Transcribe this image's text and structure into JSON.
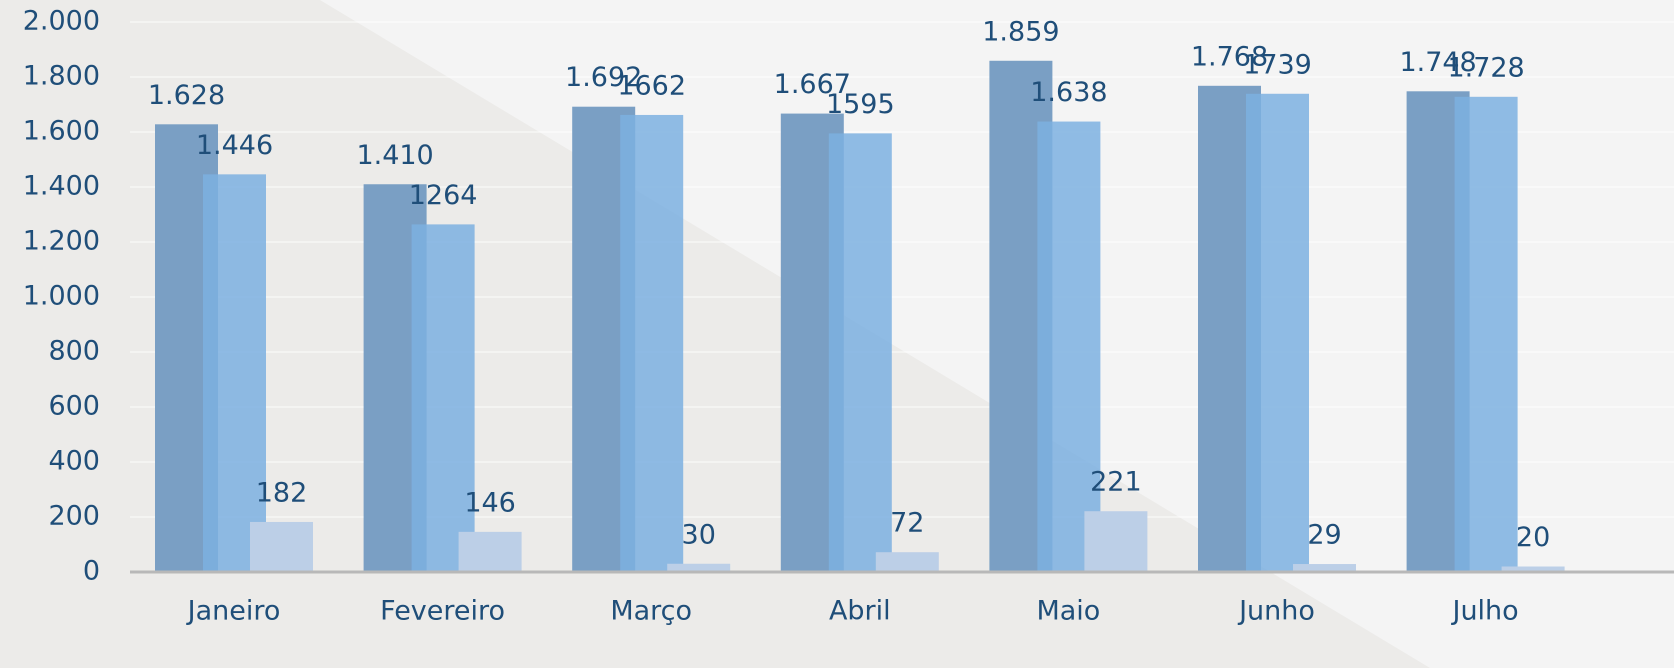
{
  "chart_data": {
    "type": "bar",
    "categories": [
      "Janeiro",
      "Fevereiro",
      "Março",
      "Abril",
      "Maio",
      "Junho",
      "Julho"
    ],
    "series": [
      {
        "color": "#7a9fc4",
        "values": [
          1628,
          1410,
          1692,
          1667,
          1859,
          1768,
          1748
        ],
        "value_labels": [
          "1.628",
          "1.410",
          "1.692",
          "1.667",
          "1.859",
          "1.768",
          "1.748"
        ]
      },
      {
        "color": "#7cb0e0",
        "values": [
          1446,
          1264,
          1662,
          1595,
          1638,
          1739,
          1728
        ],
        "value_labels": [
          "1.446",
          "1264",
          "1662",
          "1595",
          "1.638",
          "1739",
          "1.728"
        ]
      },
      {
        "color": "#bccfe7",
        "values": [
          182,
          146,
          30,
          72,
          221,
          29,
          20
        ]
      }
    ],
    "ylim": [
      0,
      2000
    ],
    "yticks": [
      0,
      200,
      400,
      600,
      800,
      {
        "value": 1000,
        "label": "1.000"
      },
      {
        "value": 1200,
        "label": "1.200"
      },
      {
        "value": 1400,
        "label": "1.400"
      },
      {
        "value": 1600,
        "label": "1.600"
      },
      {
        "value": 1800,
        "label": "1.800"
      },
      {
        "value": 2000,
        "label": "2.000"
      }
    ],
    "grid": true
  }
}
